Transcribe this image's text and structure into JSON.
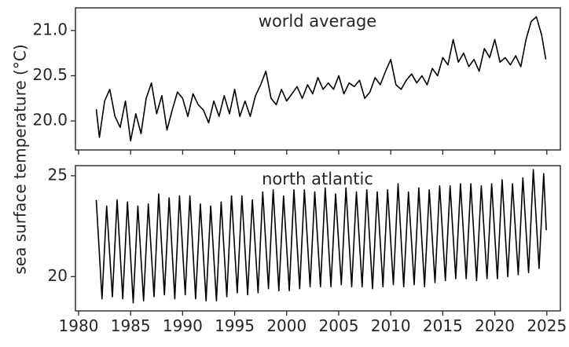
{
  "chart_data": {
    "type": "line",
    "ylabel": "sea surface temperature (°C)",
    "xlabel": "",
    "xlim": [
      1979.7,
      2026.3
    ],
    "x_ticks": [
      1980,
      1985,
      1990,
      1995,
      2000,
      2005,
      2010,
      2015,
      2020,
      2025
    ],
    "x_tick_labels": [
      "1980",
      "1985",
      "1990",
      "1995",
      "2000",
      "2005",
      "2010",
      "2015",
      "2020",
      "2025"
    ],
    "grid": false,
    "line_color": "#000000",
    "panels": [
      {
        "title": "world average",
        "ylim": [
          19.68,
          21.25
        ],
        "y_ticks": [
          20.0,
          20.5,
          21.0
        ],
        "y_tick_labels": [
          "20.0",
          "20.5",
          "21.0"
        ],
        "series": [
          {
            "x": [
              1981.7,
              1982.0,
              1982.5,
              1983.0,
              1983.5,
              1984.0,
              1984.5,
              1985.0,
              1985.5,
              1986.0,
              1986.5,
              1987.0,
              1987.5,
              1988.0,
              1988.5,
              1989.0,
              1989.5,
              1990.0,
              1990.5,
              1991.0,
              1991.5,
              1992.0,
              1992.5,
              1993.0,
              1993.5,
              1994.0,
              1994.5,
              1995.0,
              1995.5,
              1996.0,
              1996.5,
              1997.0,
              1997.5,
              1998.0,
              1998.5,
              1999.0,
              1999.5,
              2000.0,
              2000.5,
              2001.0,
              2001.5,
              2002.0,
              2002.5,
              2003.0,
              2003.5,
              2004.0,
              2004.5,
              2005.0,
              2005.5,
              2006.0,
              2006.5,
              2007.0,
              2007.5,
              2008.0,
              2008.5,
              2009.0,
              2009.5,
              2010.0,
              2010.5,
              2011.0,
              2011.5,
              2012.0,
              2012.5,
              2013.0,
              2013.5,
              2014.0,
              2014.5,
              2015.0,
              2015.5,
              2016.0,
              2016.5,
              2017.0,
              2017.5,
              2018.0,
              2018.5,
              2019.0,
              2019.5,
              2020.0,
              2020.5,
              2021.0,
              2021.5,
              2022.0,
              2022.5,
              2023.0,
              2023.5,
              2024.0,
              2024.5,
              2024.9
            ],
            "y": [
              20.13,
              19.82,
              20.22,
              20.35,
              20.05,
              19.93,
              20.22,
              19.78,
              20.08,
              19.86,
              20.25,
              20.42,
              20.08,
              20.28,
              19.9,
              20.12,
              20.32,
              20.25,
              20.05,
              20.3,
              20.18,
              20.12,
              19.98,
              20.22,
              20.05,
              20.28,
              20.08,
              20.35,
              20.05,
              20.22,
              20.05,
              20.28,
              20.4,
              20.55,
              20.25,
              20.18,
              20.35,
              20.22,
              20.3,
              20.38,
              20.25,
              20.4,
              20.3,
              20.48,
              20.35,
              20.42,
              20.35,
              20.5,
              20.3,
              20.42,
              20.38,
              20.45,
              20.25,
              20.32,
              20.48,
              20.4,
              20.55,
              20.68,
              20.4,
              20.35,
              20.45,
              20.52,
              20.42,
              20.5,
              20.4,
              20.58,
              20.5,
              20.7,
              20.62,
              20.9,
              20.65,
              20.75,
              20.6,
              20.68,
              20.55,
              20.8,
              20.7,
              20.9,
              20.65,
              20.7,
              20.62,
              20.72,
              20.6,
              20.9,
              21.1,
              21.15,
              20.95,
              20.68
            ]
          }
        ]
      },
      {
        "title": "north atlantic",
        "ylim": [
          18.3,
          25.5
        ],
        "y_ticks": [
          20,
          25
        ],
        "y_tick_labels": [
          "20",
          "25"
        ],
        "series": [
          {
            "x": [
              1981.7,
              1982.25,
              1982.7,
              1983.25,
              1983.7,
              1984.25,
              1984.7,
              1985.25,
              1985.7,
              1986.25,
              1986.7,
              1987.25,
              1987.7,
              1988.25,
              1988.7,
              1989.25,
              1989.7,
              1990.25,
              1990.7,
              1991.25,
              1991.7,
              1992.25,
              1992.7,
              1993.25,
              1993.7,
              1994.25,
              1994.7,
              1995.25,
              1995.7,
              1996.25,
              1996.7,
              1997.25,
              1997.7,
              1998.25,
              1998.7,
              1999.25,
              1999.7,
              2000.25,
              2000.7,
              2001.25,
              2001.7,
              2002.25,
              2002.7,
              2003.25,
              2003.7,
              2004.25,
              2004.7,
              2005.25,
              2005.7,
              2006.25,
              2006.7,
              2007.25,
              2007.7,
              2008.25,
              2008.7,
              2009.25,
              2009.7,
              2010.25,
              2010.7,
              2011.25,
              2011.7,
              2012.25,
              2012.7,
              2013.25,
              2013.7,
              2014.25,
              2014.7,
              2015.25,
              2015.7,
              2016.25,
              2016.7,
              2017.25,
              2017.7,
              2018.25,
              2018.7,
              2019.25,
              2019.7,
              2020.25,
              2020.7,
              2021.25,
              2021.7,
              2022.25,
              2022.7,
              2023.25,
              2023.7,
              2024.25,
              2024.7,
              2024.95
            ],
            "y": [
              23.8,
              18.9,
              23.5,
              19.0,
              23.8,
              18.9,
              23.7,
              18.7,
              23.5,
              18.8,
              23.6,
              19.0,
              24.1,
              19.1,
              23.9,
              18.9,
              24.0,
              19.1,
              24.0,
              18.9,
              23.6,
              18.8,
              23.5,
              18.8,
              23.7,
              19.0,
              24.0,
              19.2,
              24.0,
              19.1,
              23.8,
              19.2,
              24.2,
              19.4,
              24.3,
              19.3,
              24.0,
              19.3,
              24.3,
              19.4,
              24.3,
              19.5,
              24.2,
              19.5,
              24.4,
              19.5,
              24.1,
              19.6,
              24.4,
              19.5,
              24.2,
              19.5,
              24.3,
              19.4,
              24.2,
              19.5,
              24.3,
              19.6,
              24.6,
              19.5,
              24.2,
              19.6,
              24.4,
              19.5,
              24.3,
              19.7,
              24.5,
              19.8,
              24.5,
              19.9,
              24.6,
              19.9,
              24.6,
              19.8,
              24.5,
              19.9,
              24.6,
              19.9,
              24.8,
              20.0,
              24.6,
              20.1,
              24.9,
              20.2,
              25.3,
              20.4,
              25.1,
              22.3
            ]
          }
        ]
      }
    ]
  }
}
